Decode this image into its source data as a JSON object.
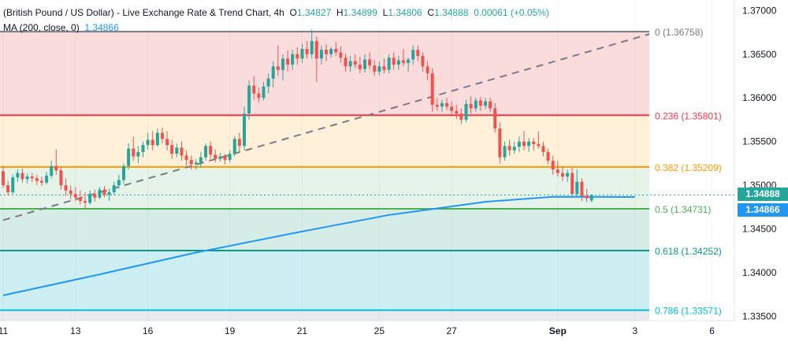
{
  "header": {
    "title": "(British Pound / US Dollar) - Live Exchange Rate & Trend Chart, 4h",
    "ohlc": {
      "o_label": "O",
      "o": "1.34827",
      "h_label": "H",
      "h": "1.34899",
      "l_label": "L",
      "l": "1.34806",
      "c_label": "C",
      "c": "1.34888",
      "change": "0.00061 (+0.05%)"
    },
    "ma_label": "MA (200, close, 0)",
    "ma_value": "1.34866"
  },
  "colors": {
    "up": "#26a69a",
    "down": "#ef5350",
    "ma": "#2196f3",
    "trend": "#787b86"
  },
  "price_tags": {
    "last": "1.34888",
    "ma": "1.34866"
  },
  "chart_data": {
    "type": "candlestick",
    "interval": "4h",
    "ylim": [
      1.3345,
      1.3712
    ],
    "y_ticks": [
      "1.37000",
      "1.36500",
      "1.36000",
      "1.35500",
      "1.35000",
      "1.34500",
      "1.34000",
      "1.33500"
    ],
    "y_tick_values": [
      1.37,
      1.365,
      1.36,
      1.355,
      1.35,
      1.345,
      1.34,
      1.335
    ],
    "x_ticks": [
      {
        "label": "11",
        "i": 0
      },
      {
        "label": "13",
        "i": 15
      },
      {
        "label": "16",
        "i": 30
      },
      {
        "label": "19",
        "i": 47
      },
      {
        "label": "21",
        "i": 62
      },
      {
        "label": "25",
        "i": 78
      },
      {
        "label": "27",
        "i": 93
      },
      {
        "label": "Sep",
        "i": 115,
        "bold": true
      },
      {
        "label": "3",
        "i": 131
      },
      {
        "label": "6",
        "i": 147
      }
    ],
    "fibonacci": [
      {
        "label": "0 (1.36758)",
        "value": 1.36758,
        "color": "#787b86",
        "fill": "#fbdcdc"
      },
      {
        "label": "0.236 (1.35801)",
        "value": 1.35801,
        "color": "#f23645",
        "fill": "#fff0d9"
      },
      {
        "label": "0.382 (1.35209)",
        "value": 1.35209,
        "color": "#ff9800",
        "fill": "#e6f3e8"
      },
      {
        "label": "0.5 (1.34731)",
        "value": 1.34731,
        "color": "#4caf50",
        "fill": "#d5ede6"
      },
      {
        "label": "0.618 (1.34252)",
        "value": 1.34252,
        "color": "#089981",
        "fill": "#cdeff4"
      },
      {
        "label": "0.786 (1.33571)",
        "value": 1.33571,
        "color": "#00bcd4",
        "fill": "#e8eaed"
      }
    ],
    "trendline": {
      "from": {
        "i": 0,
        "y": 1.346
      },
      "to": {
        "i": 134,
        "y": 1.3673
      }
    },
    "ma200": [
      [
        0,
        1.3374
      ],
      [
        20,
        1.3398
      ],
      [
        40,
        1.3423
      ],
      [
        60,
        1.3445
      ],
      [
        80,
        1.3466
      ],
      [
        100,
        1.3481
      ],
      [
        114,
        1.34868
      ],
      [
        131,
        1.34866
      ]
    ],
    "candles": [
      [
        1.3516,
        1.3522,
        1.3497,
        1.35
      ],
      [
        1.35,
        1.3505,
        1.3488,
        1.3492
      ],
      [
        1.3492,
        1.3512,
        1.349,
        1.3509
      ],
      [
        1.3509,
        1.3518,
        1.3504,
        1.3514
      ],
      [
        1.3514,
        1.3519,
        1.3503,
        1.3507
      ],
      [
        1.3507,
        1.3513,
        1.3502,
        1.351
      ],
      [
        1.351,
        1.3514,
        1.3504,
        1.3508
      ],
      [
        1.3508,
        1.3512,
        1.35,
        1.3505
      ],
      [
        1.3505,
        1.351,
        1.3499,
        1.3503
      ],
      [
        1.3503,
        1.3515,
        1.3501,
        1.3511
      ],
      [
        1.3511,
        1.3528,
        1.3508,
        1.3522
      ],
      [
        1.3522,
        1.3541,
        1.3512,
        1.3517
      ],
      [
        1.3517,
        1.3521,
        1.3495,
        1.35
      ],
      [
        1.35,
        1.3508,
        1.3488,
        1.3494
      ],
      [
        1.3494,
        1.35,
        1.3484,
        1.349
      ],
      [
        1.349,
        1.3498,
        1.3482,
        1.3486
      ],
      [
        1.3486,
        1.3494,
        1.3478,
        1.3482
      ],
      [
        1.3482,
        1.3492,
        1.3474,
        1.348
      ],
      [
        1.348,
        1.3494,
        1.3478,
        1.349
      ],
      [
        1.349,
        1.3495,
        1.3481,
        1.3486
      ],
      [
        1.3486,
        1.3498,
        1.3484,
        1.3495
      ],
      [
        1.3495,
        1.3499,
        1.3486,
        1.3489
      ],
      [
        1.3489,
        1.3496,
        1.3482,
        1.3492
      ],
      [
        1.3492,
        1.3504,
        1.3489,
        1.35
      ],
      [
        1.35,
        1.3512,
        1.3496,
        1.3506
      ],
      [
        1.3506,
        1.3525,
        1.3502,
        1.3522
      ],
      [
        1.3522,
        1.3548,
        1.3518,
        1.3542
      ],
      [
        1.3542,
        1.3556,
        1.3528,
        1.3533
      ],
      [
        1.3533,
        1.3545,
        1.3525,
        1.3538
      ],
      [
        1.3538,
        1.355,
        1.3532,
        1.3546
      ],
      [
        1.3546,
        1.356,
        1.3541,
        1.3552
      ],
      [
        1.3552,
        1.3562,
        1.354,
        1.3546
      ],
      [
        1.3546,
        1.3565,
        1.3544,
        1.356
      ],
      [
        1.356,
        1.3566,
        1.3548,
        1.3553
      ],
      [
        1.3553,
        1.3562,
        1.354,
        1.3546
      ],
      [
        1.3546,
        1.3552,
        1.353,
        1.3536
      ],
      [
        1.3536,
        1.3548,
        1.3532,
        1.3543
      ],
      [
        1.3543,
        1.355,
        1.3528,
        1.3534
      ],
      [
        1.3534,
        1.354,
        1.3522,
        1.3529
      ],
      [
        1.3529,
        1.3534,
        1.3518,
        1.3524
      ],
      [
        1.3524,
        1.353,
        1.3518,
        1.3526
      ],
      [
        1.3526,
        1.3538,
        1.352,
        1.3532
      ],
      [
        1.3532,
        1.3548,
        1.3528,
        1.3545
      ],
      [
        1.3545,
        1.355,
        1.353,
        1.3535
      ],
      [
        1.3535,
        1.3541,
        1.3526,
        1.353
      ],
      [
        1.353,
        1.3537,
        1.3527,
        1.3533
      ],
      [
        1.3533,
        1.3536,
        1.3524,
        1.3529
      ],
      [
        1.3529,
        1.354,
        1.3526,
        1.3536
      ],
      [
        1.3536,
        1.3556,
        1.3533,
        1.3553
      ],
      [
        1.3553,
        1.356,
        1.3538,
        1.3545
      ],
      [
        1.3545,
        1.359,
        1.354,
        1.3582
      ],
      [
        1.3582,
        1.362,
        1.3575,
        1.3614
      ],
      [
        1.3614,
        1.3625,
        1.3598,
        1.3605
      ],
      [
        1.3605,
        1.3612,
        1.3595,
        1.36
      ],
      [
        1.36,
        1.3618,
        1.3597,
        1.3613
      ],
      [
        1.3613,
        1.3628,
        1.3605,
        1.3622
      ],
      [
        1.3622,
        1.3642,
        1.3612,
        1.3636
      ],
      [
        1.3636,
        1.366,
        1.3625,
        1.3632
      ],
      [
        1.3632,
        1.365,
        1.362,
        1.3645
      ],
      [
        1.3645,
        1.3654,
        1.363,
        1.3638
      ],
      [
        1.3638,
        1.3655,
        1.3632,
        1.365
      ],
      [
        1.365,
        1.3658,
        1.3638,
        1.3645
      ],
      [
        1.3645,
        1.3662,
        1.364,
        1.3656
      ],
      [
        1.3656,
        1.3665,
        1.3645,
        1.365
      ],
      [
        1.365,
        1.3678,
        1.3645,
        1.3665
      ],
      [
        1.3665,
        1.367,
        1.3618,
        1.3645
      ],
      [
        1.3645,
        1.366,
        1.3638,
        1.3655
      ],
      [
        1.3655,
        1.3661,
        1.3642,
        1.365
      ],
      [
        1.365,
        1.3658,
        1.3646,
        1.3656
      ],
      [
        1.3656,
        1.3664,
        1.3648,
        1.3652
      ],
      [
        1.3652,
        1.3659,
        1.364,
        1.3646
      ],
      [
        1.3646,
        1.365,
        1.363,
        1.3636
      ],
      [
        1.3636,
        1.3648,
        1.363,
        1.3642
      ],
      [
        1.3642,
        1.365,
        1.3634,
        1.3638
      ],
      [
        1.3638,
        1.3647,
        1.3628,
        1.3633
      ],
      [
        1.3633,
        1.365,
        1.3629,
        1.3644
      ],
      [
        1.3644,
        1.3652,
        1.3632,
        1.3637
      ],
      [
        1.3637,
        1.3643,
        1.3625,
        1.363
      ],
      [
        1.363,
        1.3642,
        1.3626,
        1.3636
      ],
      [
        1.3636,
        1.3645,
        1.3628,
        1.3632
      ],
      [
        1.3632,
        1.365,
        1.3628,
        1.3646
      ],
      [
        1.3646,
        1.3652,
        1.3632,
        1.3638
      ],
      [
        1.3638,
        1.3648,
        1.3632,
        1.3643
      ],
      [
        1.3643,
        1.3656,
        1.3636,
        1.364
      ],
      [
        1.364,
        1.3646,
        1.363,
        1.3644
      ],
      [
        1.3644,
        1.366,
        1.3638,
        1.3655
      ],
      [
        1.3655,
        1.366,
        1.3642,
        1.3648
      ],
      [
        1.3648,
        1.3652,
        1.363,
        1.3636
      ],
      [
        1.3636,
        1.3642,
        1.362,
        1.3628
      ],
      [
        1.3628,
        1.3634,
        1.3584,
        1.3592
      ],
      [
        1.3592,
        1.36,
        1.3585,
        1.359
      ],
      [
        1.359,
        1.3598,
        1.3584,
        1.3594
      ],
      [
        1.3594,
        1.36,
        1.3586,
        1.359
      ],
      [
        1.359,
        1.3596,
        1.358,
        1.3585
      ],
      [
        1.3585,
        1.3592,
        1.3576,
        1.3582
      ],
      [
        1.3582,
        1.3588,
        1.357,
        1.3575
      ],
      [
        1.3575,
        1.3598,
        1.3572,
        1.3593
      ],
      [
        1.3593,
        1.3602,
        1.3582,
        1.3588
      ],
      [
        1.3588,
        1.36,
        1.3584,
        1.3597
      ],
      [
        1.3597,
        1.3601,
        1.3585,
        1.3591
      ],
      [
        1.3591,
        1.36,
        1.3587,
        1.3596
      ],
      [
        1.3596,
        1.36,
        1.3584,
        1.3588
      ],
      [
        1.3588,
        1.3594,
        1.356,
        1.3565
      ],
      [
        1.3565,
        1.3572,
        1.3525,
        1.3532
      ],
      [
        1.3532,
        1.355,
        1.3528,
        1.3545
      ],
      [
        1.3545,
        1.3552,
        1.3534,
        1.354
      ],
      [
        1.354,
        1.355,
        1.3536,
        1.3544
      ],
      [
        1.3544,
        1.3556,
        1.3538,
        1.355
      ],
      [
        1.355,
        1.3562,
        1.354,
        1.3545
      ],
      [
        1.3545,
        1.3554,
        1.3538,
        1.355
      ],
      [
        1.355,
        1.3554,
        1.354,
        1.3547
      ],
      [
        1.3547,
        1.3562,
        1.3542,
        1.3545
      ],
      [
        1.3545,
        1.355,
        1.3533,
        1.3538
      ],
      [
        1.3538,
        1.3542,
        1.3524,
        1.3528
      ],
      [
        1.3528,
        1.3534,
        1.3512,
        1.3518
      ],
      [
        1.3518,
        1.3528,
        1.351,
        1.3514
      ],
      [
        1.3514,
        1.3522,
        1.3505,
        1.351
      ],
      [
        1.351,
        1.3518,
        1.3504,
        1.3514
      ],
      [
        1.3514,
        1.352,
        1.3488,
        1.349
      ],
      [
        1.349,
        1.3518,
        1.3486,
        1.3504
      ],
      [
        1.3504,
        1.3508,
        1.3482,
        1.3488
      ],
      [
        1.3488,
        1.3496,
        1.3481,
        1.3485
      ],
      [
        1.34827,
        1.34899,
        1.34806,
        1.34888
      ]
    ]
  }
}
